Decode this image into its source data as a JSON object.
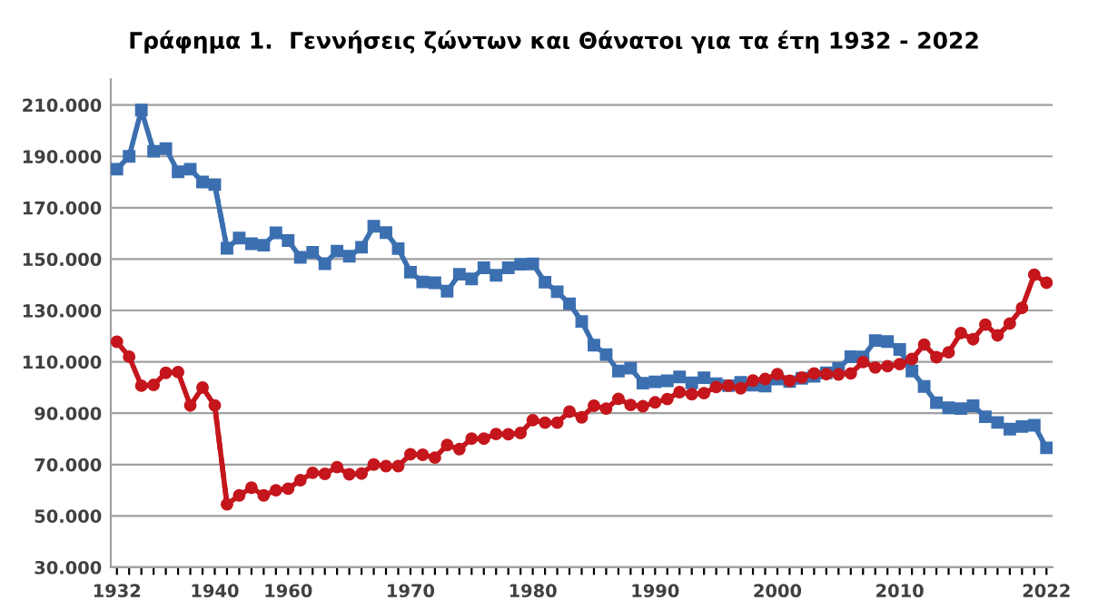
{
  "chart_data": {
    "type": "line",
    "title": "Γράφημα 1.  Γεννήσεις ζώντων και Θάνατοι για τα έτη 1932 - 2022",
    "categories": [
      "1932",
      null,
      null,
      null,
      null,
      null,
      null,
      null,
      "1940",
      null,
      null,
      null,
      null,
      null,
      "1960",
      null,
      null,
      null,
      null,
      null,
      null,
      null,
      null,
      null,
      "1970",
      null,
      null,
      null,
      null,
      null,
      null,
      null,
      null,
      null,
      "1980",
      null,
      null,
      null,
      null,
      null,
      null,
      null,
      null,
      null,
      "1990",
      null,
      null,
      null,
      null,
      null,
      null,
      null,
      null,
      null,
      "2000",
      null,
      null,
      null,
      null,
      null,
      null,
      null,
      null,
      null,
      "2010",
      null,
      null,
      null,
      null,
      null,
      null,
      null,
      null,
      null,
      null,
      null,
      "2022"
    ],
    "series": [
      {
        "color": "#3b6fb0",
        "marker": "square",
        "line_style": "solid",
        "values": [
          185000,
          190000,
          208000,
          192000,
          193000,
          184000,
          185000,
          180000,
          179000,
          154200,
          158200,
          156000,
          155400,
          160200,
          157200,
          150700,
          152600,
          148200,
          153100,
          151100,
          154600,
          162800,
          160300,
          154100,
          144900,
          141100,
          140800,
          137500,
          144100,
          142300,
          146600,
          143700,
          146600,
          148000,
          148100,
          141000,
          137300,
          132600,
          125700,
          116500,
          112800,
          106400,
          107500,
          101700,
          102200,
          102600,
          104100,
          101800,
          103800,
          101500,
          100700,
          102000,
          100900,
          100600,
          103300,
          102300,
          103600,
          104400,
          105700,
          107500,
          112000,
          111900,
          118300,
          117900,
          114800,
          106400,
          100400,
          94100,
          92100,
          91800,
          92900,
          88600,
          86400,
          83800,
          84800,
          85300,
          76500
        ]
      },
      {
        "color": "#c4161c",
        "marker": "circle",
        "line_style": "solid",
        "values": [
          117800,
          112000,
          100700,
          101000,
          105700,
          106000,
          93000,
          100000,
          93000,
          54500,
          58000,
          61000,
          58000,
          60000,
          60600,
          63900,
          66800,
          66400,
          69000,
          66200,
          66500,
          70000,
          69400,
          69400,
          74000,
          73800,
          72700,
          77600,
          76000,
          80100,
          80100,
          81900,
          81800,
          82300,
          87300,
          86300,
          86300,
          90600,
          88400,
          92900,
          91800,
          95600,
          93200,
          92700,
          94200,
          95500,
          98200,
          97400,
          97800,
          100200,
          100700,
          99700,
          102700,
          103300,
          105200,
          102600,
          103900,
          105500,
          105200,
          105100,
          105500,
          109900,
          107800,
          108300,
          109100,
          111100,
          116700,
          111800,
          113700,
          121200,
          118800,
          124500,
          120300,
          124900,
          131000,
          143900,
          140800
        ]
      },
      {
        "color": "#3b6fb0",
        "marker": "none",
        "line_style": "dashed",
        "values": [
          null,
          null,
          null,
          null,
          null,
          null,
          null,
          null,
          179000,
          154200,
          null,
          null,
          null,
          null,
          null,
          null,
          null,
          null,
          null,
          null,
          null,
          null,
          null,
          null,
          null,
          null,
          null,
          null,
          null,
          null,
          null,
          null,
          null,
          null,
          null,
          null,
          null,
          null,
          null,
          null,
          null,
          null,
          null,
          null,
          null,
          null,
          null,
          null,
          null,
          null,
          null,
          null,
          null,
          null,
          null,
          null,
          null,
          null,
          null,
          null,
          null,
          null,
          null,
          null,
          null,
          null,
          null,
          null,
          null,
          null,
          null,
          null,
          null,
          null,
          null,
          null,
          null
        ]
      },
      {
        "color": "#c4161c",
        "marker": "none",
        "line_style": "dashed",
        "values": [
          null,
          null,
          null,
          null,
          null,
          null,
          null,
          null,
          93000,
          54500,
          null,
          null,
          null,
          null,
          null,
          null,
          null,
          null,
          null,
          null,
          null,
          null,
          null,
          null,
          null,
          null,
          null,
          null,
          null,
          null,
          null,
          null,
          null,
          null,
          null,
          null,
          null,
          null,
          null,
          null,
          null,
          null,
          null,
          null,
          null,
          null,
          null,
          null,
          null,
          null,
          null,
          null,
          null,
          null,
          null,
          null,
          null,
          null,
          null,
          null,
          null,
          null,
          null,
          null,
          null,
          null,
          null,
          null,
          null,
          null,
          null,
          null,
          null,
          null,
          null,
          null,
          null
        ]
      }
    ],
    "ylim": [
      30000,
      220000
    ],
    "yticks": [
      {
        "value": 30000,
        "label": "30.000"
      },
      {
        "value": 50000,
        "label": "50.000"
      },
      {
        "value": 70000,
        "label": "70.000"
      },
      {
        "value": 90000,
        "label": "90.000"
      },
      {
        "value": 110000,
        "label": "110.000"
      },
      {
        "value": 130000,
        "label": "130.000"
      },
      {
        "value": 150000,
        "label": "150.000"
      },
      {
        "value": 170000,
        "label": "170.000"
      },
      {
        "value": 190000,
        "label": "190.000"
      },
      {
        "value": 210000,
        "label": "210.000"
      }
    ],
    "grid": "y",
    "legend": false
  }
}
